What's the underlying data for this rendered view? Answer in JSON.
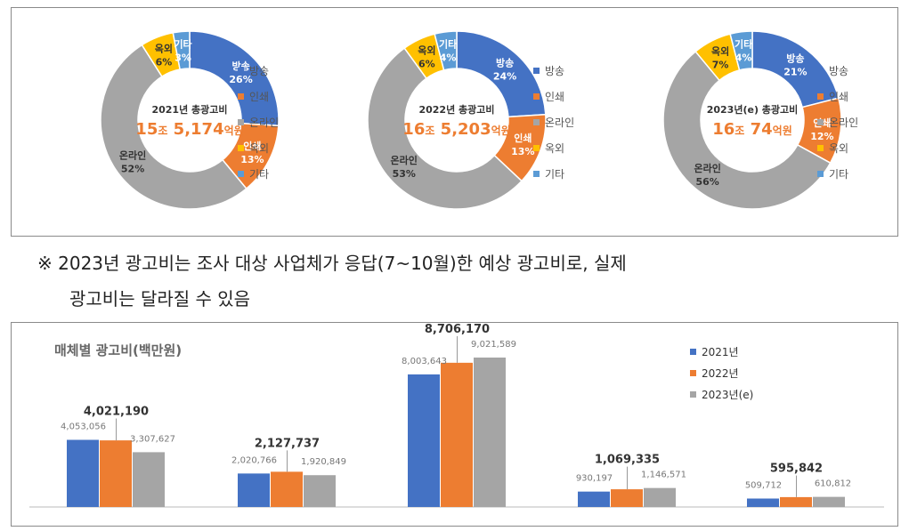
{
  "colors": {
    "broadcast": "#4472C4",
    "print": "#ED7D31",
    "online": "#A5A5A5",
    "outdoor": "#FFC000",
    "other": "#5B9BD5",
    "highlight": "#ED7D31"
  },
  "donuts": [
    {
      "center_title": "2021년 총광고비",
      "center_value": {
        "jo": "15",
        "jo_unit": "조",
        "amount": "5,174",
        "unit": "억원"
      },
      "slices": [
        {
          "key": "broadcast",
          "name": "방송",
          "value": 26
        },
        {
          "key": "print",
          "name": "인쇄",
          "value": 13
        },
        {
          "key": "online",
          "name": "온라인",
          "value": 52
        },
        {
          "key": "outdoor",
          "name": "옥외",
          "value": 6
        },
        {
          "key": "other",
          "name": "기타",
          "value": 3
        }
      ]
    },
    {
      "center_title": "2022년 총광고비",
      "center_value": {
        "jo": "16",
        "jo_unit": "조",
        "amount": "5,203",
        "unit": "억원"
      },
      "slices": [
        {
          "key": "broadcast",
          "name": "방송",
          "value": 24
        },
        {
          "key": "print",
          "name": "인쇄",
          "value": 13
        },
        {
          "key": "online",
          "name": "온라인",
          "value": 53
        },
        {
          "key": "outdoor",
          "name": "옥외",
          "value": 6
        },
        {
          "key": "other",
          "name": "기타",
          "value": 4
        }
      ]
    },
    {
      "center_title": "2023년(e) 총광고비",
      "center_value": {
        "jo": "16",
        "jo_unit": "조",
        "amount": "74",
        "unit": "억원"
      },
      "slices": [
        {
          "key": "broadcast",
          "name": "방송",
          "value": 21
        },
        {
          "key": "print",
          "name": "인쇄",
          "value": 12
        },
        {
          "key": "online",
          "name": "온라인",
          "value": 56
        },
        {
          "key": "outdoor",
          "name": "옥외",
          "value": 7
        },
        {
          "key": "other",
          "name": "기타",
          "value": 4
        }
      ]
    }
  ],
  "legend": [
    "방송",
    "인쇄",
    "온라인",
    "옥외",
    "기타"
  ],
  "note": {
    "line1": "※ 2023년 광고비는 조사 대상 사업체가 응답(7~10월)한 예상 광고비로, 실제",
    "line2": "광고비는 달라질 수 있음"
  },
  "chart_data": {
    "type": "bar",
    "title": "매체별 광고비(백만원)",
    "series": [
      {
        "name": "2021년",
        "values": [
          4053056,
          2020766,
          8003643,
          930197,
          509712
        ],
        "labels": [
          "4,053,056",
          "2,020,766",
          "8,003,643",
          "930,197",
          "509,712"
        ]
      },
      {
        "name": "2022년",
        "values": [
          4021190,
          2127737,
          8706170,
          1069335,
          595842
        ],
        "labels": [
          "4,021,190",
          "2,127,737",
          "8,706,170",
          "1,069,335",
          "595,842"
        ]
      },
      {
        "name": "2023년(e)",
        "values": [
          3307627,
          1920849,
          9021589,
          1146571,
          610812
        ],
        "labels": [
          "3,307,627",
          "1,920,849",
          "9,021,589",
          "1,146,571",
          "610,812"
        ]
      }
    ],
    "colors": [
      "#4472C4",
      "#ED7D31",
      "#A5A5A5"
    ]
  }
}
